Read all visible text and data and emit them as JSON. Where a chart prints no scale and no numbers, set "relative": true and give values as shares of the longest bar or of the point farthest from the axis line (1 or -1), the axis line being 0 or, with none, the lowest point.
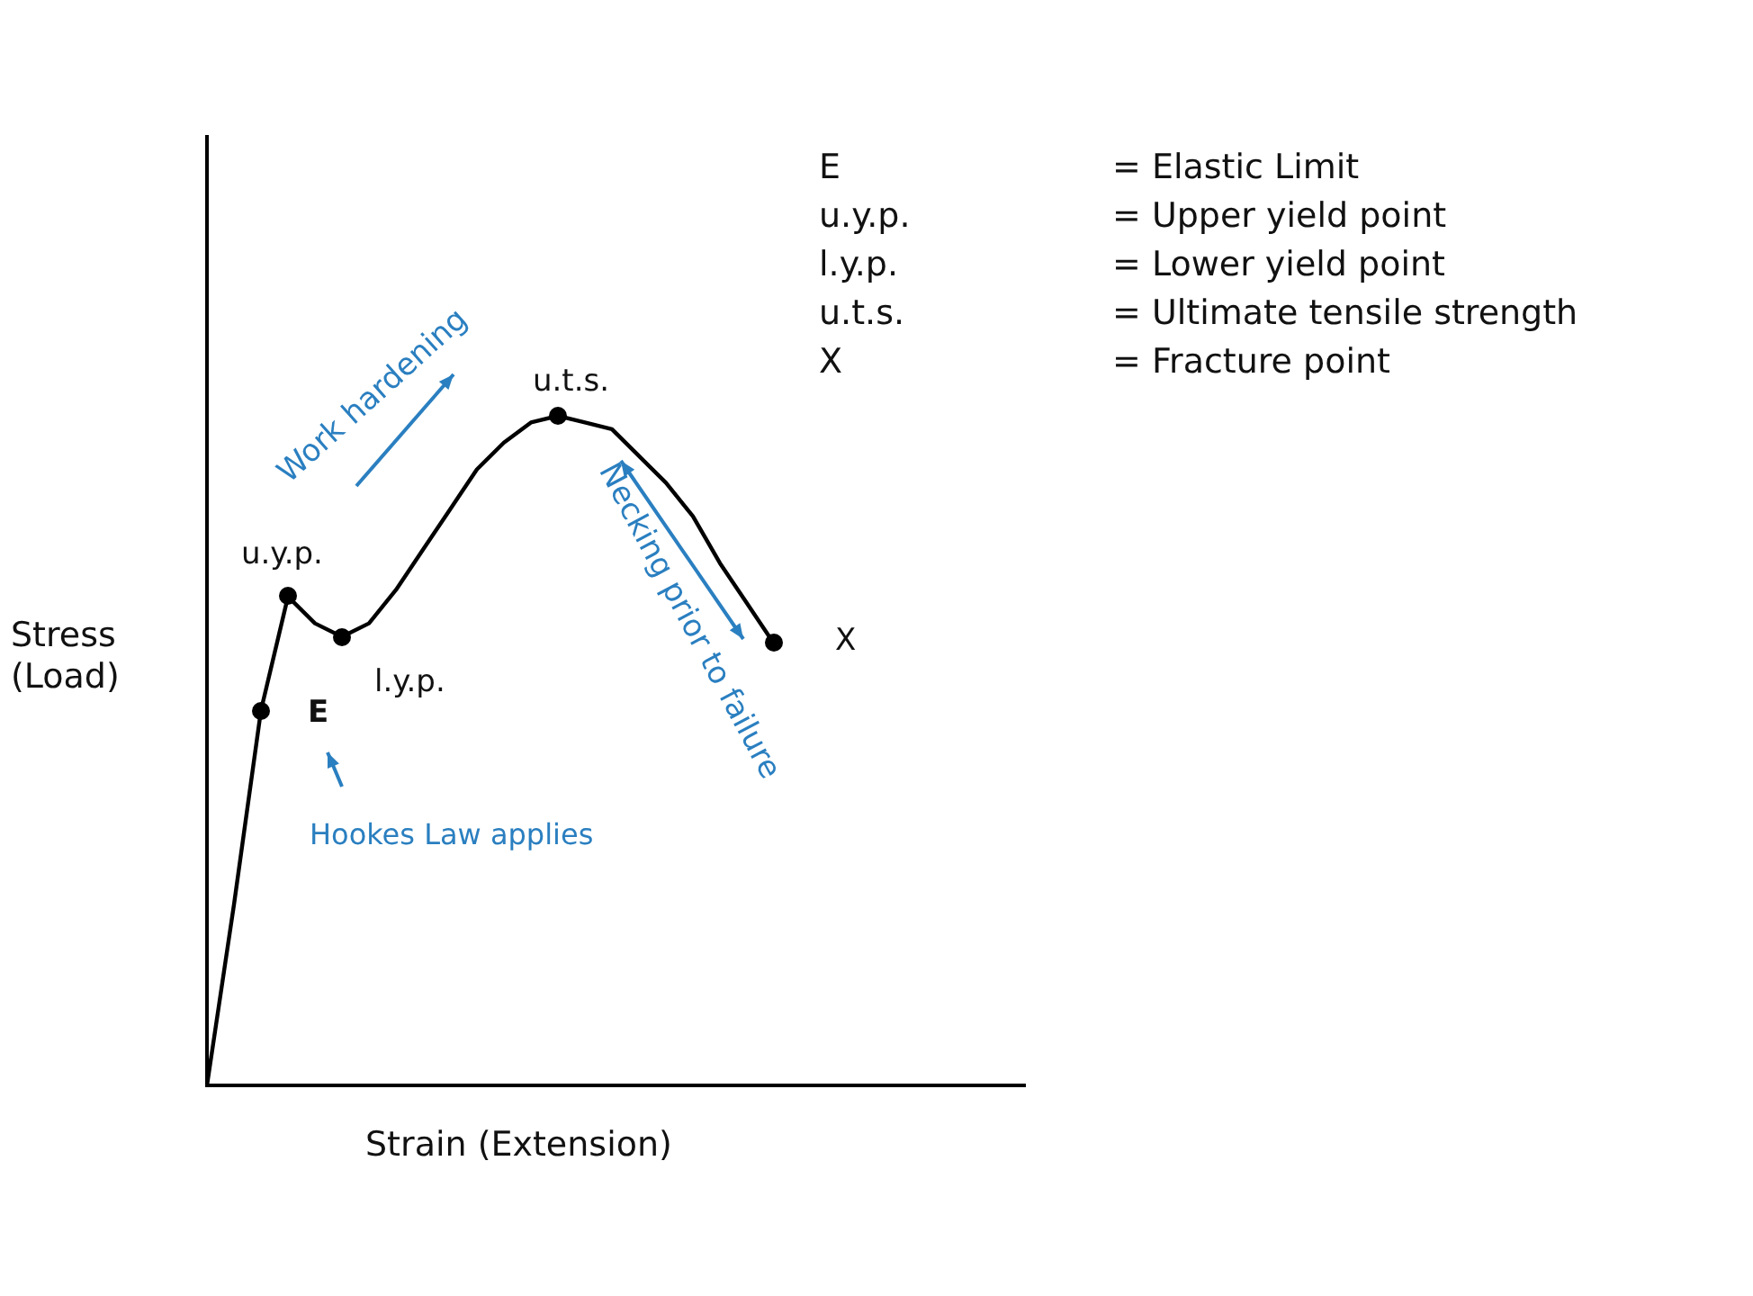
{
  "chart_data": {
    "type": "line",
    "relative": true,
    "xlabel": "Strain (Extension)",
    "ylabel": "Stress\n(Load)",
    "categories": [
      null,
      null,
      null,
      null,
      null,
      null,
      null,
      null,
      null,
      null,
      null,
      null,
      null,
      null,
      null,
      null,
      null,
      null,
      null,
      null,
      null,
      null
    ],
    "series": [
      {
        "type": "line",
        "color": "#000000",
        "values": [
          0,
          0.27,
          0.56,
          0.73,
          0.69,
          0.67,
          0.69,
          0.74,
          0.8,
          0.86,
          0.92,
          0.96,
          0.99,
          1,
          0.99,
          0.98,
          0.94,
          0.9,
          0.85,
          0.78,
          0.72,
          0.66
        ]
      }
    ],
    "grid": false,
    "legend": false,
    "marker": "none",
    "line_style": "solid",
    "annotations": [
      "E",
      "u.y.p.",
      "l.y.p.",
      "u.t.s.",
      "X",
      "Work hardening",
      "Necking prior to failure",
      "Hookes Law applies",
      "E\t= Elastic Limit",
      "u.y.p.\t= Upper yield point",
      "l.y.p.\t= Lower yield point",
      "u.t.s.\t= Ultimate tensile strength",
      "X\t= Fracture point"
    ]
  }
}
